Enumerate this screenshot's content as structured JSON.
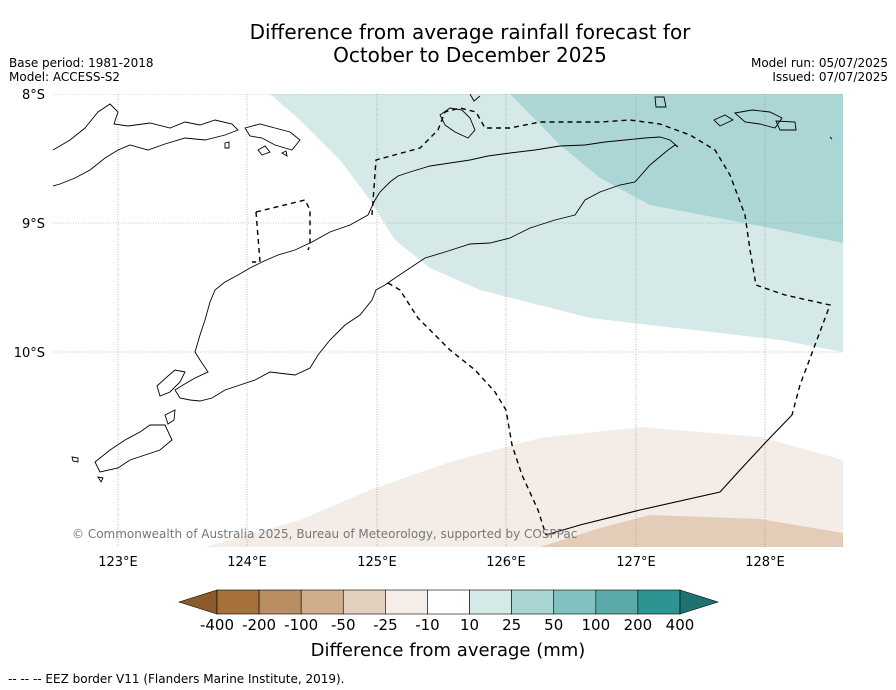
{
  "title_line1": "Difference from average rainfall forecast for",
  "title_line2": "October to December 2025",
  "base_period": "Base period: 1981-2018",
  "model": "Model: ACCESS-S2",
  "model_run": "Model run: 05/07/2025",
  "issued": "Issued: 07/07/2025",
  "copyright": "© Commonwealth of Australia 2025, Bureau of Meteorology, supported by COSPPac",
  "footnote": "--  --  -- EEZ border V11 (Flanders Marine Institute, 2019).",
  "lat_labels": [
    "8°S",
    "9°S",
    "10°S"
  ],
  "lon_labels": [
    "123°E",
    "124°E",
    "125°E",
    "126°E",
    "127°E",
    "128°E"
  ],
  "colorbar": {
    "label": "Difference from average (mm)",
    "ticks": [
      "-400",
      "-200",
      "-100",
      "-50",
      "-25",
      "-10",
      "10",
      "25",
      "50",
      "100",
      "200",
      "400"
    ],
    "colors": [
      "#a6713b",
      "#b98e63",
      "#cfae8c",
      "#e3d0bd",
      "#f5ede7",
      "#ffffff",
      "#d5eae8",
      "#a9d5d4",
      "#81c1bf",
      "#5aaaa9",
      "#2e9492",
      "#1f7270"
    ],
    "over_color": "#1f7270",
    "under_color": "#8c5a2b"
  },
  "map_colors": {
    "light_teal": "#d5eae8",
    "mid_teal": "#acd6d6",
    "light_brown": "#f4ece6",
    "tan": "#e3cdb9"
  }
}
